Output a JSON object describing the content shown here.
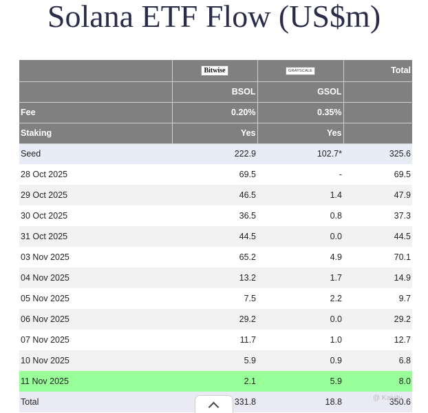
{
  "title": "Solana ETF Flow (US$m)",
  "header": {
    "logos": {
      "bsol": "Bitwise",
      "gsol": "GRAYSCALE"
    },
    "total_label": "Total",
    "tickers": [
      "",
      "BSOL",
      "GSOL",
      ""
    ],
    "fee": [
      "Fee",
      "0.20%",
      "0.35%",
      ""
    ],
    "staking": [
      "Staking",
      "Yes",
      "Yes",
      ""
    ]
  },
  "rows": [
    {
      "label": "Seed",
      "bsol": "222.9",
      "gsol": "102.7*",
      "total": "325.6"
    },
    {
      "label": "28 Oct 2025",
      "bsol": "69.5",
      "gsol": "-",
      "total": "69.5"
    },
    {
      "label": "29 Oct 2025",
      "bsol": "46.5",
      "gsol": "1.4",
      "total": "47.9"
    },
    {
      "label": "30 Oct 2025",
      "bsol": "36.5",
      "gsol": "0.8",
      "total": "37.3"
    },
    {
      "label": "31 Oct 2025",
      "bsol": "44.5",
      "gsol": "0.0",
      "total": "44.5"
    },
    {
      "label": "03 Nov 2025",
      "bsol": "65.2",
      "gsol": "4.9",
      "total": "70.1"
    },
    {
      "label": "04 Nov 2025",
      "bsol": "13.2",
      "gsol": "1.7",
      "total": "14.9"
    },
    {
      "label": "05 Nov 2025",
      "bsol": "7.5",
      "gsol": "2.2",
      "total": "9.7"
    },
    {
      "label": "06 Nov 2025",
      "bsol": "29.2",
      "gsol": "0.0",
      "total": "29.2"
    },
    {
      "label": "07 Nov 2025",
      "bsol": "11.7",
      "gsol": "1.0",
      "total": "12.7"
    },
    {
      "label": "10 Nov 2025",
      "bsol": "5.9",
      "gsol": "0.9",
      "total": "6.8"
    },
    {
      "label": "11 Nov 2025",
      "bsol": "2.1",
      "gsol": "5.9",
      "total": "8.0"
    },
    {
      "label": "Total",
      "bsol": "331.8",
      "gsol": "18.8",
      "total": "350.6"
    }
  ],
  "colors": {
    "header_bg": "#808080",
    "highlight_row": "#99ff99",
    "seed_row": "#e8ecf6",
    "title_text": "#2a2c4a"
  },
  "watermark": "@ Kaiyity"
}
